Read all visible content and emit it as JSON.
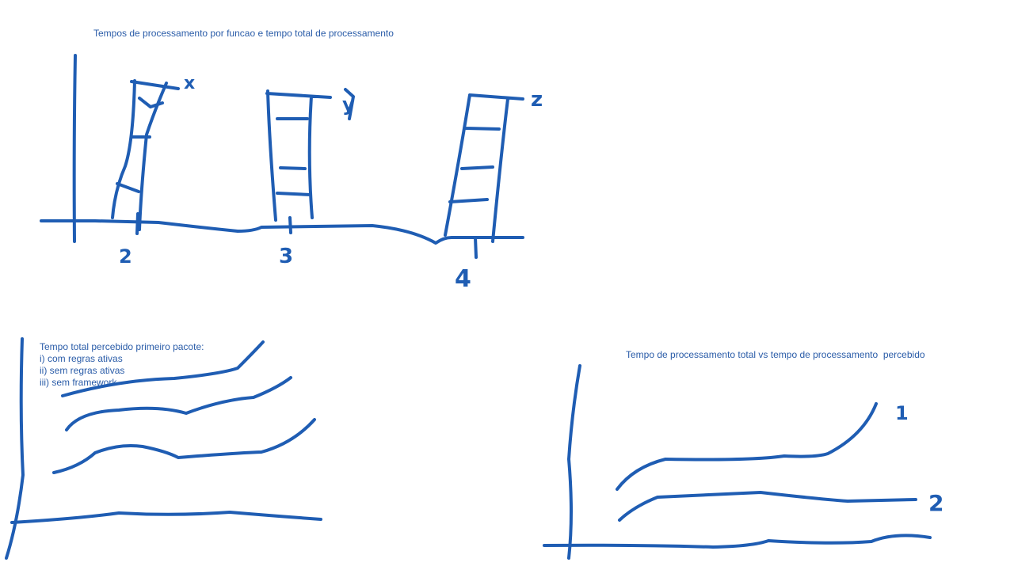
{
  "top_sketch": {
    "title": "Tempos de processamento por funcao e tempo total de processamento",
    "series_labels": [
      "x",
      "y",
      "z"
    ],
    "bar_labels": [
      "2",
      "3",
      "4"
    ]
  },
  "bottom_left_sketch": {
    "title": "Tempo total percebido primeiro pacote:",
    "items": [
      "i) com regras ativas",
      "ii) sem regras ativas",
      "iii) sem framework"
    ]
  },
  "bottom_right_sketch": {
    "title": "Tempo de processamento total vs tempo de processamento  percebido",
    "line_labels": [
      "1",
      "2"
    ]
  }
}
